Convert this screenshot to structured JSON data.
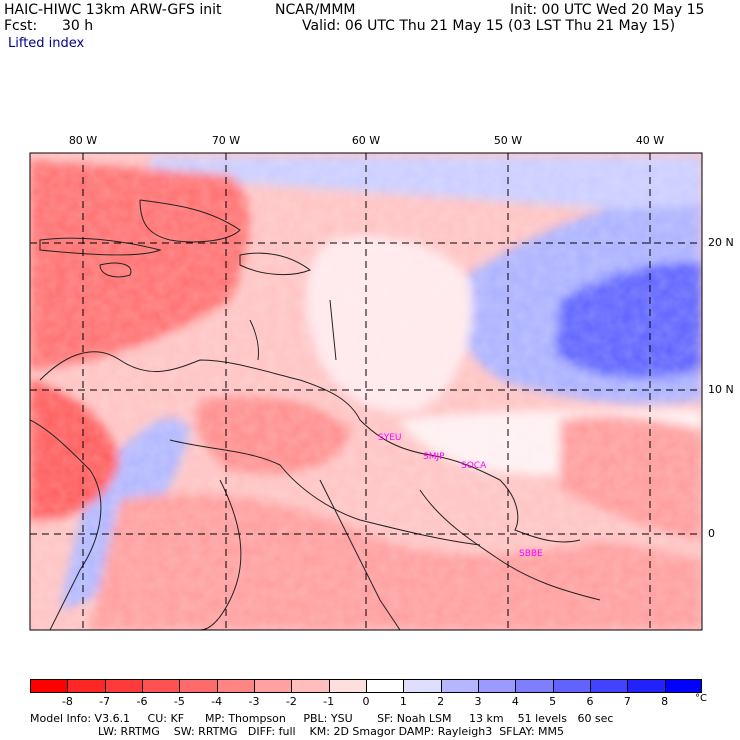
{
  "header": {
    "model_title": "HAIC-HIWC 13km ARW-GFS init",
    "institution": "NCAR/MMM",
    "init": "Init: 00 UTC Wed 20 May 15",
    "fcst_label": "Fcst:",
    "fcst_hours": "30 h",
    "valid": "Valid: 06 UTC Thu 21 May 15 (03 LST Thu 21 May 15)",
    "variable": "Lifted index"
  },
  "map": {
    "lon_labels": [
      "80 W",
      "70 W",
      "60 W",
      "50 W",
      "40 W"
    ],
    "lat_labels": [
      "20 N",
      "10 N",
      "0"
    ],
    "stations": [
      "SYEU",
      "SMJP",
      "SOCA",
      "SBBE"
    ],
    "colors": {
      "land_outline": "#222222",
      "gridline": "#000000",
      "station_label": "#ff00ff"
    }
  },
  "colorbar": {
    "labels": [
      "-8",
      "-7",
      "-6",
      "-5",
      "-4",
      "-3",
      "-2",
      "-1",
      "0",
      "1",
      "2",
      "3",
      "4",
      "5",
      "6",
      "7",
      "8"
    ],
    "unit": "°C",
    "colors": [
      "#ff0000",
      "#ff2626",
      "#ff3a3a",
      "#ff5151",
      "#ff6b6b",
      "#ff8585",
      "#ffa1a1",
      "#ffbdbd",
      "#ffdede",
      "#ffffff",
      "#dedeff",
      "#b6b6ff",
      "#9a9aff",
      "#7e7eff",
      "#6262ff",
      "#4343ff",
      "#2222ff",
      "#0000ff"
    ]
  },
  "footer": {
    "line1": "Model Info: V3.6.1     CU: KF      MP: Thompson     PBL: YSU       SF: Noah LSM     13 km    51 levels   60 sec",
    "line2": "LW: RRTMG    SW: RRTMG   DIFF: full    KM: 2D Smagor DAMP: Rayleigh3  SFLAY: MM5"
  }
}
